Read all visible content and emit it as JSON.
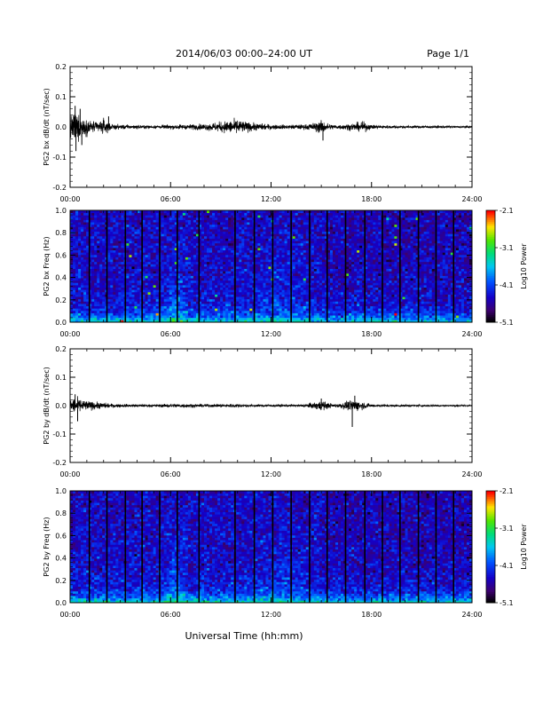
{
  "header": {
    "date_range": "2014/06/03  00:00–24:00 UT",
    "page": "Page 1/1"
  },
  "x_axis": {
    "label": "Universal Time (hh:mm)",
    "ticks": [
      "00:00",
      "06:00",
      "12:00",
      "18:00",
      "24:00"
    ],
    "range_hours": [
      0,
      24
    ]
  },
  "chart_data": [
    {
      "type": "line",
      "panel": "bx-waveform",
      "ylabel": "PG2 bx dB/dt (nT/sec)",
      "ylim": [
        -0.2,
        0.2
      ],
      "yticks": [
        "0.2",
        "0.1",
        "0.0",
        "-0.1",
        "-0.2"
      ],
      "x_unit": "hours UT",
      "envelope": {
        "x": [
          0,
          0.25,
          0.5,
          1.0,
          1.5,
          2.0,
          2.5,
          3.5,
          5.0,
          6.0,
          7.0,
          8.0,
          9.0,
          9.5,
          10.0,
          10.5,
          11.0,
          12.0,
          13.0,
          14.0,
          14.5,
          15.0,
          15.5,
          16.0,
          17.0,
          17.5,
          18.0,
          19.0,
          21.0,
          24.0
        ],
        "amplitude": [
          0.04,
          0.06,
          0.05,
          0.03,
          0.02,
          0.03,
          0.01,
          0.008,
          0.006,
          0.008,
          0.01,
          0.012,
          0.02,
          0.025,
          0.03,
          0.02,
          0.015,
          0.01,
          0.008,
          0.01,
          0.015,
          0.025,
          0.012,
          0.008,
          0.015,
          0.02,
          0.008,
          0.006,
          0.005,
          0.004
        ]
      },
      "spikes": [
        {
          "x": 0.3,
          "y": 0.07
        },
        {
          "x": 0.35,
          "y": -0.08
        },
        {
          "x": 0.6,
          "y": 0.06
        },
        {
          "x": 0.7,
          "y": -0.06
        },
        {
          "x": 2.3,
          "y": 0.035
        },
        {
          "x": 15.1,
          "y": -0.045
        }
      ]
    },
    {
      "type": "heatmap",
      "panel": "bx-spectrogram",
      "ylabel": "PG2 bx Freq (Hz)",
      "ylim": [
        0.0,
        1.0
      ],
      "yticks": [
        "1.0",
        "0.8",
        "0.6",
        "0.4",
        "0.2",
        "0.0"
      ],
      "colorbar": {
        "label": "Log10 Power",
        "range": [
          -5.1,
          -2.1
        ],
        "ticks": [
          "-2.1",
          "-3.1",
          "-4.1",
          "-5.1"
        ]
      },
      "data_gaps_hours": [
        1.15,
        2.2,
        3.3,
        4.3,
        5.35,
        6.4,
        7.7,
        9.85,
        11.0,
        12.1,
        13.2,
        14.3,
        15.35,
        16.45,
        17.6,
        18.65,
        19.7,
        20.8,
        21.85,
        22.9
      ]
    },
    {
      "type": "line",
      "panel": "by-waveform",
      "ylabel": "PG2 by dB/dt (nT/sec)",
      "ylim": [
        -0.2,
        0.2
      ],
      "yticks": [
        "0.2",
        "0.1",
        "0.0",
        "-0.1",
        "-0.2"
      ],
      "x_unit": "hours UT",
      "envelope": {
        "x": [
          0,
          0.25,
          0.5,
          1.0,
          1.5,
          2.0,
          2.5,
          3.5,
          5.0,
          6.0,
          7.0,
          8.0,
          9.0,
          9.5,
          10.0,
          10.5,
          11.0,
          12.0,
          13.0,
          14.0,
          14.5,
          15.0,
          15.5,
          16.0,
          16.5,
          17.0,
          17.5,
          18.0,
          19.0,
          21.0,
          24.0
        ],
        "amplitude": [
          0.025,
          0.035,
          0.03,
          0.02,
          0.015,
          0.012,
          0.008,
          0.006,
          0.005,
          0.008,
          0.008,
          0.006,
          0.006,
          0.007,
          0.008,
          0.006,
          0.005,
          0.005,
          0.005,
          0.006,
          0.012,
          0.022,
          0.01,
          0.007,
          0.018,
          0.025,
          0.015,
          0.006,
          0.005,
          0.004,
          0.003
        ]
      },
      "spikes": [
        {
          "x": 0.3,
          "y": 0.04
        },
        {
          "x": 0.45,
          "y": -0.055
        },
        {
          "x": 15.0,
          "y": 0.025
        },
        {
          "x": 16.85,
          "y": -0.075
        },
        {
          "x": 17.0,
          "y": 0.035
        }
      ]
    },
    {
      "type": "heatmap",
      "panel": "by-spectrogram",
      "ylabel": "PG2 by Freq (Hz)",
      "ylim": [
        0.0,
        1.0
      ],
      "yticks": [
        "1.0",
        "0.8",
        "0.6",
        "0.4",
        "0.2",
        "0.0"
      ],
      "colorbar": {
        "label": "Log10 Power",
        "range": [
          -5.1,
          -2.1
        ],
        "ticks": [
          "-2.1",
          "-3.1",
          "-4.1",
          "-5.1"
        ]
      },
      "data_gaps_hours": [
        1.15,
        2.2,
        3.3,
        4.3,
        5.35,
        6.4,
        7.7,
        9.85,
        11.0,
        12.1,
        13.2,
        14.3,
        15.35,
        16.45,
        17.6,
        18.65,
        19.7,
        20.8,
        21.85,
        22.9
      ]
    }
  ]
}
